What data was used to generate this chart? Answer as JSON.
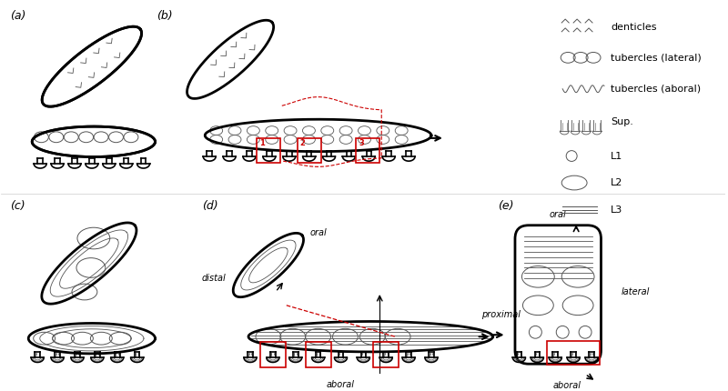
{
  "background_color": "#ffffff",
  "line_color": "#000000",
  "line_color_gray": "#555555",
  "red_color": "#cc0000",
  "lw_thick": 2.0,
  "lw_thin": 0.7,
  "lw_medium": 1.2,
  "legend_items": [
    "denticles",
    "tubercles (lateral)",
    "tubercles (aboral)",
    "Sup.",
    "L1",
    "L2",
    "L3"
  ]
}
